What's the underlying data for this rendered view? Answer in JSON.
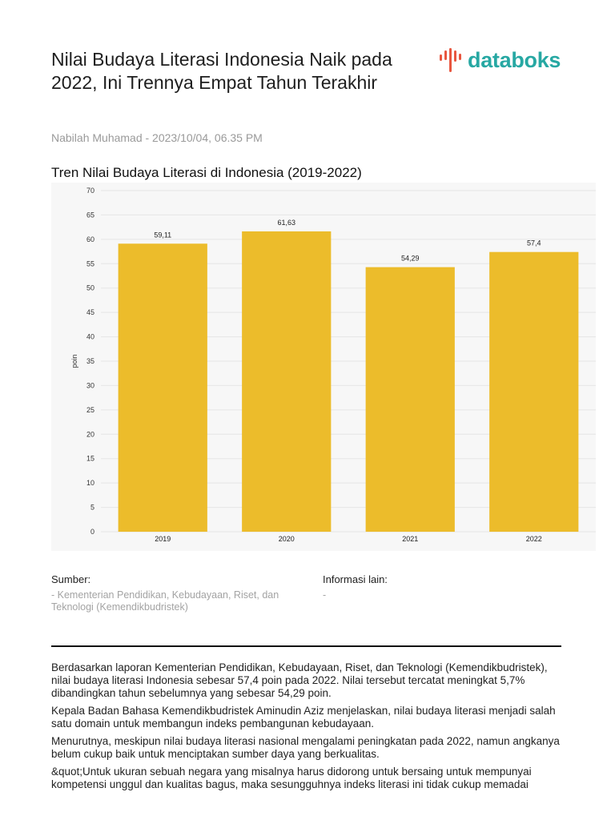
{
  "article": {
    "title": "Nilai Budaya Literasi Indonesia Naik pada 2022, Ini Trennya Empat Tahun Terakhir",
    "byline": "Nabilah Muhamad - 2023/10/04, 06.35 PM",
    "paragraphs": [
      "Berdasarkan laporan Kementerian Pendidikan, Kebudayaan, Riset, dan Teknologi (Kemendikbudristek), nilai budaya literasi Indonesia sebesar 57,4 poin pada 2022. Nilai tersebut tercatat meningkat 5,7% dibandingkan tahun sebelumnya yang sebesar 54,29 poin.",
      "Kepala Badan Bahasa Kemendikbudristek Aminudin Aziz menjelaskan, nilai budaya literasi menjadi salah satu domain untuk membangun indeks pembangunan kebudayaan.",
      "Menurutnya, meskipun nilai budaya literasi nasional mengalami peningkatan pada 2022, namun angkanya belum cukup baik untuk menciptakan sumber daya yang berkualitas.",
      "&quot;Untuk ukuran sebuah negara yang misalnya harus didorong untuk bersaing untuk mempunyai kompetensi unggul dan kualitas bagus, maka sesungguhnya indeks literasi ini tidak cukup memadai"
    ]
  },
  "logo": {
    "text": "databoks",
    "icon": "databoks-logo-icon"
  },
  "source": {
    "label": "Sumber:",
    "text": "- Kementerian Pendidikan, Kebudayaan, Riset, dan Teknologi (Kemendikbudristek)"
  },
  "info": {
    "label": "Informasi lain:",
    "text": "-"
  },
  "colors": {
    "bar": "#ecbc2b",
    "brand": "#27a8a3",
    "brand_accent": "#e8563f"
  },
  "chart_data": {
    "type": "bar",
    "title": "Tren Nilai Budaya Literasi di Indonesia (2019-2022)",
    "categories": [
      "2019",
      "2020",
      "2021",
      "2022"
    ],
    "values": [
      59.11,
      61.63,
      54.29,
      57.4
    ],
    "value_labels": [
      "59,11",
      "61,63",
      "54,29",
      "57,4"
    ],
    "xlabel": "",
    "ylabel": "poin",
    "ylim": [
      0,
      70
    ],
    "yticks": [
      0,
      5,
      10,
      15,
      20,
      25,
      30,
      35,
      40,
      45,
      50,
      55,
      60,
      65,
      70
    ],
    "grid": true,
    "legend": "none"
  }
}
